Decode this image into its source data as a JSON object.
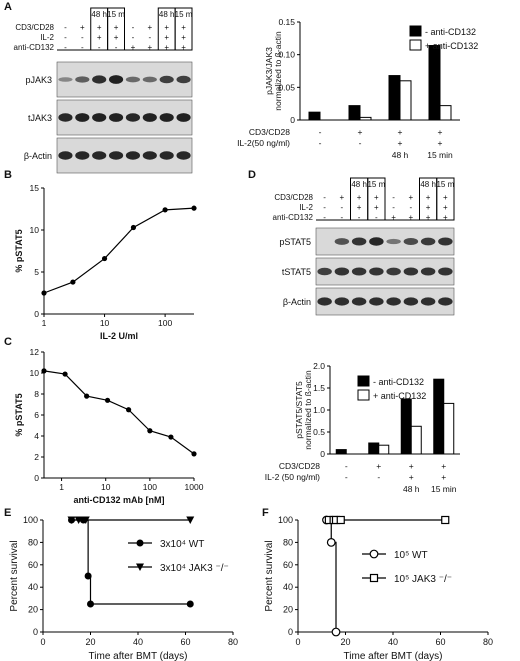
{
  "panels": {
    "A": {
      "label": "A",
      "blot": {
        "header_rows": [
          {
            "label": "CD3/CD28",
            "cells": [
              "-",
              "+",
              "+",
              "+",
              "-",
              "+",
              "+",
              "+"
            ]
          },
          {
            "label": "IL-2",
            "cells": [
              "-",
              "-",
              "+",
              "+",
              "-",
              "-",
              "+",
              "+"
            ]
          },
          {
            "label": "anti-CD132",
            "cells": [
              "-",
              "-",
              "-",
              "-",
              "+",
              "+",
              "+",
              "+"
            ]
          }
        ],
        "time_labels": [
          "48 h",
          "15 m",
          "48 h",
          "15 m"
        ],
        "bands": [
          "pJAK3",
          "tJAK3",
          "β-Actin"
        ]
      },
      "chart": {
        "ylabel": "pJAK3/JAK3 normalized to ß-actin",
        "ylabel_line1": "pJAK3/JAK3",
        "ylabel_line2": "normalized to ß-actin",
        "legend": [
          "-  anti-CD132",
          "+ anti-CD132"
        ],
        "row1_label": "CD3/CD28",
        "row1": [
          "-",
          "+",
          "+",
          "+"
        ],
        "row2_label": "IL-2(50 ng/ml)",
        "row2": [
          "-",
          "-",
          "+",
          "+"
        ],
        "time_labels": [
          "48 h",
          "15 min"
        ]
      }
    },
    "B": {
      "label": "B",
      "xlabel": "IL-2 U/ml",
      "ylabel": "% pSTAT5"
    },
    "C": {
      "label": "C",
      "xlabel": "anti-CD132 mAb [nM]",
      "ylabel": "% pSTAT5"
    },
    "D": {
      "label": "D",
      "blot": {
        "header_rows": [
          {
            "label": "CD3/CD28",
            "cells": [
              "-",
              "+",
              "+",
              "+",
              "-",
              "+",
              "+",
              "+"
            ]
          },
          {
            "label": "IL-2",
            "cells": [
              "-",
              "-",
              "+",
              "+",
              "-",
              "-",
              "+",
              "+"
            ]
          },
          {
            "label": "anti-CD132",
            "cells": [
              "-",
              "-",
              "-",
              "-",
              "+",
              "+",
              "+",
              "+"
            ]
          }
        ],
        "time_labels": [
          "48 h",
          "15 m",
          "48 h",
          "15 m"
        ],
        "bands": [
          "pSTAT5",
          "tSTAT5",
          "β-Actin"
        ]
      },
      "chart": {
        "ylabel": "pSTAT5/STAT5 normalized to ß-actin",
        "ylabel_line1": "pSTAT5/STAT5",
        "ylabel_line2": "normalized to ß-actin",
        "legend": [
          "-  anti-CD132",
          "+ anti-CD132"
        ],
        "row1_label": "CD3/CD28",
        "row1": [
          "-",
          "+",
          "+",
          "+"
        ],
        "row2_label": "IL-2 (50 ng/ml)",
        "row2": [
          "-",
          "-",
          "+",
          "+"
        ],
        "time_labels": [
          "48 h",
          "15 min"
        ]
      }
    },
    "E": {
      "label": "E",
      "xlabel": "Time after BMT (days)",
      "ylabel": "Percent survival",
      "legend": [
        "3x10⁴ WT",
        "3x10⁴ JAK3 ⁻/⁻"
      ]
    },
    "F": {
      "label": "F",
      "xlabel": "Time after BMT (days)",
      "ylabel": "Percent survival",
      "legend": [
        "10⁵ WT",
        "10⁵ JAK3 ⁻/⁻"
      ]
    }
  },
  "chart_data": [
    {
      "panel": "A",
      "type": "bar",
      "categories": [
        "1",
        "2",
        "3",
        "4"
      ],
      "series": [
        {
          "name": "-  anti-CD132",
          "values": [
            0.012,
            0.022,
            0.068,
            0.114
          ],
          "color": "#000000"
        },
        {
          "name": "+ anti-CD132",
          "values": [
            null,
            0.004,
            0.06,
            0.022
          ],
          "color": "#ffffff"
        }
      ],
      "ylim": [
        0,
        0.15
      ],
      "yticks": [
        0,
        0.05,
        0.1,
        0.15
      ],
      "ytick_labels": [
        "0",
        "0.05",
        "0.10",
        "0.15"
      ]
    },
    {
      "panel": "B",
      "type": "line",
      "x": [
        1,
        3,
        10,
        30,
        100,
        300
      ],
      "y": [
        2.5,
        3.8,
        6.6,
        10.3,
        12.4,
        12.6
      ],
      "xscale": "log",
      "xlim": [
        1,
        300
      ],
      "ylim": [
        0,
        15
      ],
      "xticks": [
        1,
        10,
        100
      ],
      "yticks": [
        0,
        5,
        10,
        15
      ]
    },
    {
      "panel": "C",
      "type": "line",
      "x": [
        0.4,
        1.2,
        3.7,
        11,
        33,
        100,
        300,
        1000
      ],
      "y": [
        10.2,
        9.9,
        7.8,
        7.4,
        6.5,
        4.5,
        3.9,
        2.3
      ],
      "xscale": "log",
      "xlim": [
        0.4,
        1000
      ],
      "ylim": [
        0,
        12
      ],
      "xticks": [
        1,
        10,
        100,
        1000
      ],
      "yticks": [
        0,
        2,
        4,
        6,
        8,
        10,
        12
      ]
    },
    {
      "panel": "D",
      "type": "bar",
      "categories": [
        "1",
        "2",
        "3",
        "4"
      ],
      "series": [
        {
          "name": "-  anti-CD132",
          "values": [
            0.1,
            0.25,
            1.25,
            1.7
          ],
          "color": "#000000"
        },
        {
          "name": "+ anti-CD132",
          "values": [
            null,
            0.2,
            0.63,
            1.15
          ],
          "color": "#ffffff"
        }
      ],
      "ylim": [
        0,
        2.0
      ],
      "yticks": [
        0,
        0.5,
        1.0,
        1.5,
        2.0
      ],
      "ytick_labels": [
        "0",
        "0.5",
        "1.0",
        "1.5",
        "2.0"
      ]
    },
    {
      "panel": "E",
      "type": "line",
      "step": true,
      "xlim": [
        0,
        80
      ],
      "ylim": [
        0,
        100
      ],
      "xticks": [
        0,
        20,
        40,
        60,
        80
      ],
      "yticks": [
        0,
        20,
        40,
        60,
        80,
        100
      ],
      "series": [
        {
          "name": "3x10⁴ WT",
          "marker": "circle-filled",
          "x": [
            12,
            17,
            19,
            20,
            62
          ],
          "y": [
            100,
            100,
            50,
            25,
            25
          ]
        },
        {
          "name": "3x10⁴ JAK3 ⁻/⁻",
          "marker": "triangle-down",
          "x": [
            12,
            15,
            18,
            62
          ],
          "y": [
            100,
            100,
            100,
            100
          ]
        }
      ]
    },
    {
      "panel": "F",
      "type": "line",
      "step": true,
      "xlim": [
        0,
        80
      ],
      "ylim": [
        0,
        100
      ],
      "xticks": [
        0,
        20,
        40,
        60,
        80
      ],
      "yticks": [
        0,
        20,
        40,
        60,
        80,
        100
      ],
      "series": [
        {
          "name": "10⁵ WT",
          "marker": "circle-open",
          "x": [
            12,
            14,
            16
          ],
          "y": [
            100,
            80,
            0
          ]
        },
        {
          "name": "10⁵ JAK3 ⁻/⁻",
          "marker": "square-open",
          "x": [
            13,
            15,
            16,
            18,
            62
          ],
          "y": [
            100,
            100,
            100,
            100,
            100
          ]
        }
      ]
    }
  ]
}
